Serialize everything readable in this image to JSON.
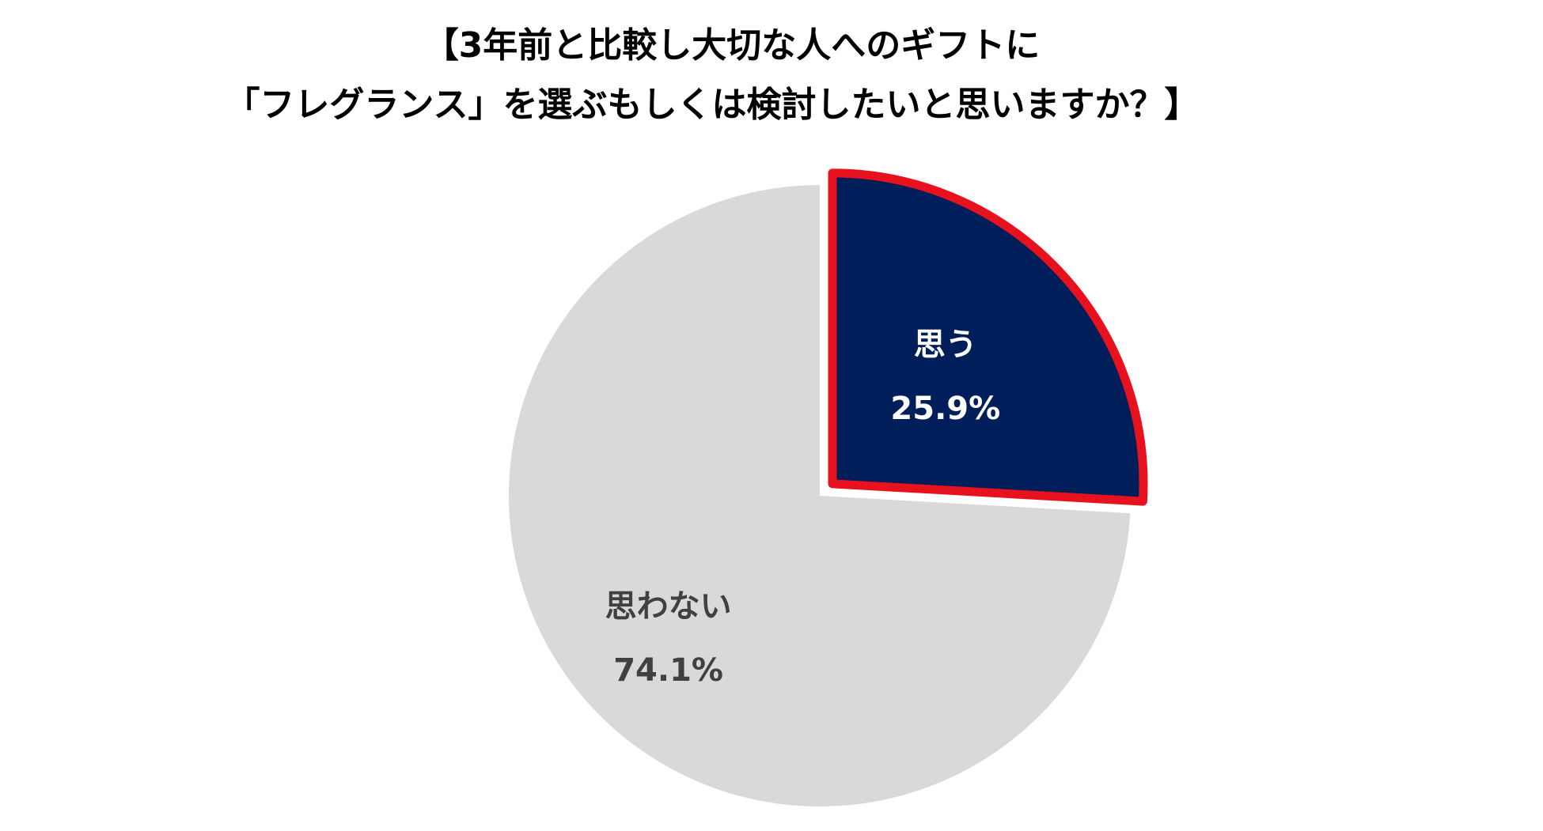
{
  "chart_data": {
    "type": "pie",
    "title_line1": "【3年前と比較し大切な人へのギフトに",
    "title_line2": "「フレグランス」を選ぶもしくは検討したいと思いますか？】",
    "slices": [
      {
        "label": "思う",
        "value": 25.9,
        "value_label": "25.9%",
        "color": "#001E5A",
        "border_color": "#E8121E",
        "exploded": true
      },
      {
        "label": "思わない",
        "value": 74.1,
        "value_label": "74.1%",
        "color": "#D9D9D9",
        "exploded": false
      }
    ],
    "start_angle": "12 o'clock",
    "direction": "clockwise",
    "legend": "none"
  }
}
